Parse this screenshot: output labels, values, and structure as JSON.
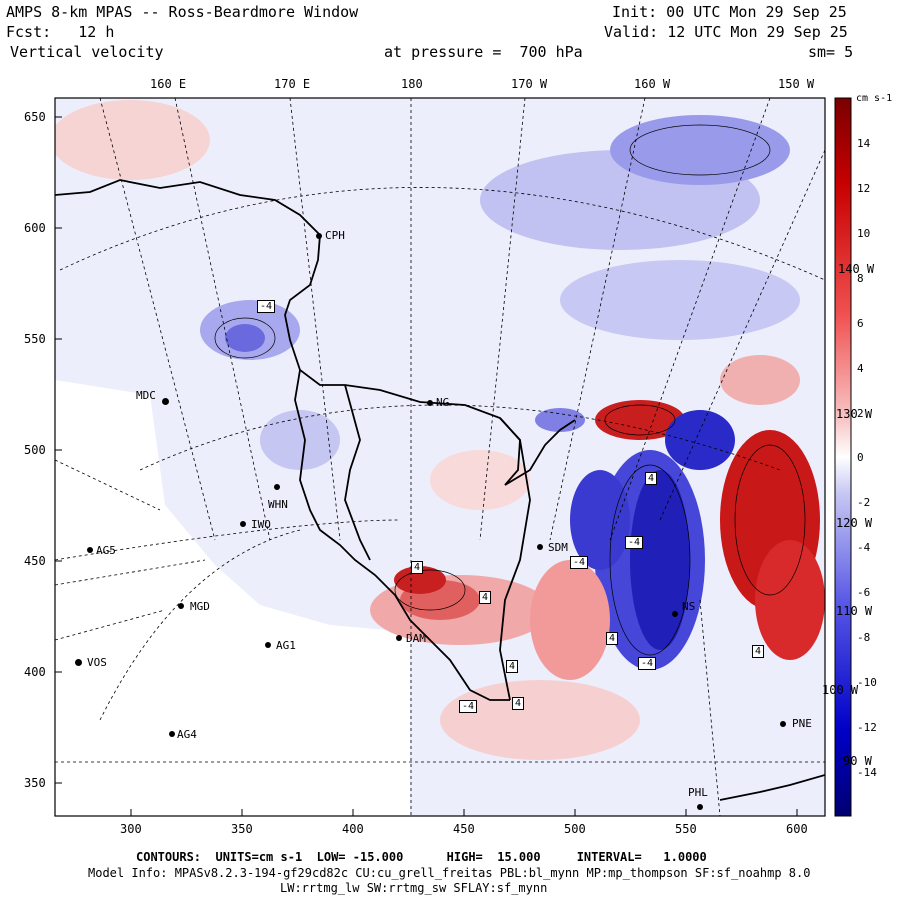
{
  "header": {
    "title": "AMPS 8-km MPAS -- Ross-Beardmore Window",
    "init": "Init: 00 UTC Mon 29 Sep 25",
    "fcst": "Fcst:   12 h",
    "valid": "Valid: 12 UTC Mon 29 Sep 25",
    "field": "Vertical velocity",
    "pressure": "at pressure =  700 hPa",
    "smoothing": "sm= 5"
  },
  "map": {
    "top_longitudes": [
      "160 E",
      "170 E",
      "180",
      "170 W",
      "160 W",
      "150 W"
    ],
    "left_ticks": [
      "650",
      "600",
      "550",
      "500",
      "450",
      "400",
      "350"
    ],
    "bottom_ticks": [
      "300",
      "350",
      "400",
      "450",
      "500",
      "550",
      "600"
    ],
    "interior_longitudes": [
      "140 W",
      "130 W",
      "120 W",
      "110 W",
      "100 W",
      "90 W"
    ],
    "stations": [
      {
        "name": "CPH"
      },
      {
        "name": "MDC"
      },
      {
        "name": "WHN"
      },
      {
        "name": "IWO"
      },
      {
        "name": "AG5"
      },
      {
        "name": "MGD"
      },
      {
        "name": "AG1"
      },
      {
        "name": "VOS"
      },
      {
        "name": "AG4"
      },
      {
        "name": "SDM"
      },
      {
        "name": "DAM"
      },
      {
        "name": "NG"
      },
      {
        "name": "NS"
      },
      {
        "name": "PNE"
      },
      {
        "name": "PHL"
      }
    ],
    "contour_labels": [
      "-4",
      "4"
    ],
    "colors": {
      "sinking": "#1a1acc",
      "rising": "#c80000",
      "background": "#eef0fb"
    }
  },
  "colorbar": {
    "units": "cm s-1",
    "labels": [
      "14",
      "12",
      "10",
      "8",
      "6",
      "4",
      "2",
      "0",
      "-2",
      "-4",
      "-6",
      "-8",
      "-10",
      "-12",
      "-14"
    ]
  },
  "footer": {
    "contours": "CONTOURS:  UNITS=cm s-1  LOW= -15.000      HIGH=  15.000     INTERVAL=   1.0000",
    "model_info": "Model Info: MPASv8.2.3-194-gf29cd82c CU:cu_grell_freitas PBL:bl_mynn MP:mp_thompson SF:sf_noahmp 8.0",
    "physics": "LW:rrtmg_lw SW:rrtmg_sw SFLAY:sf_mynn"
  }
}
